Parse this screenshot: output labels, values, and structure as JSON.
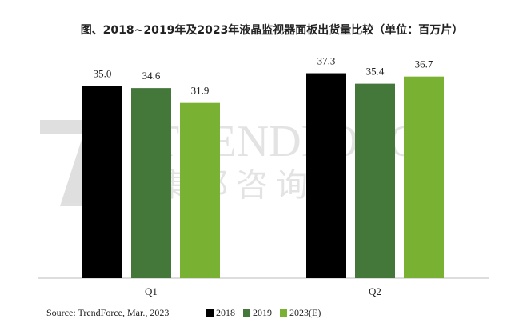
{
  "chart_data": {
    "type": "bar",
    "title": "图、2018~2019年及2023年液晶监视器面板出货量比较（单位：百万片）",
    "source": "Source: TrendForce, Mar., 2023",
    "watermark": [
      "TRENDFORCE",
      "集邦咨询"
    ],
    "categories": [
      "Q1",
      "Q2"
    ],
    "series": [
      {
        "name": "2018",
        "color": "#000000",
        "values": [
          35.0,
          37.3
        ],
        "value_labels": [
          "35.0",
          "37.3"
        ]
      },
      {
        "name": "2019",
        "color": "#44773a",
        "values": [
          34.6,
          35.4
        ],
        "value_labels": [
          "34.6",
          "35.4"
        ]
      },
      {
        "name": "2023(E)",
        "color": "#79b232",
        "values": [
          31.9,
          36.7
        ],
        "value_labels": [
          "31.9",
          "36.7"
        ]
      }
    ],
    "ylim": [
      0,
      40
    ]
  }
}
